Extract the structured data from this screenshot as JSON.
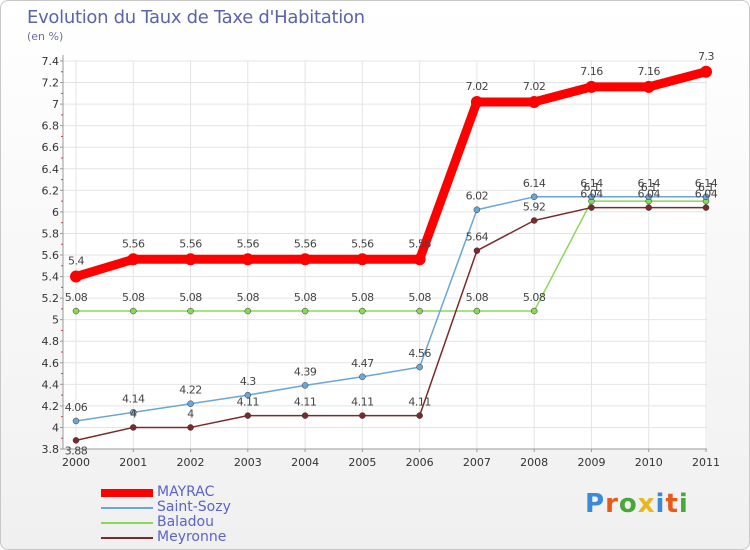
{
  "title": "Evolution du Taux de Taxe d'Habitation",
  "subtitle": "(en %)",
  "logo": {
    "letters": [
      "P",
      "r",
      "o",
      "x",
      "i",
      "t",
      "i"
    ],
    "colors": [
      "#3a8ad8",
      "#e85a1a",
      "#4aa83a",
      "#e8b81a",
      "#3a8ad8",
      "#e85a1a",
      "#4aa83a"
    ]
  },
  "chart_data": {
    "type": "line",
    "title": "Evolution du Taux de Taxe d'Habitation",
    "subtitle": "(en %)",
    "x": [
      "2000",
      "2001",
      "2002",
      "2003",
      "2004",
      "2005",
      "2006",
      "2007",
      "2008",
      "2009",
      "2010",
      "2011"
    ],
    "ylim": [
      3.8,
      7.4
    ],
    "yticks": [
      "3.8",
      "4",
      "4.2",
      "4.4",
      "4.6",
      "4.8",
      "5",
      "5.2",
      "5.4",
      "5.6",
      "5.8",
      "6",
      "6.2",
      "6.4",
      "6.6",
      "6.8",
      "7",
      "7.2",
      "7.4"
    ],
    "grid": true,
    "legend_position": "bottom-left",
    "series": [
      {
        "name": "MAYRAC",
        "color": "#ff0000",
        "values": [
          5.4,
          5.56,
          5.56,
          5.56,
          5.56,
          5.56,
          5.56,
          7.02,
          7.02,
          7.16,
          7.16,
          7.3
        ],
        "labels": [
          "5.4",
          "5.56",
          "5.56",
          "5.56",
          "5.56",
          "5.56",
          "5.56",
          "7.02",
          "7.02",
          "7.16",
          "7.16",
          "7.3"
        ]
      },
      {
        "name": "Saint-Sozy",
        "color": "#6aa6d8",
        "values": [
          4.06,
          4.14,
          4.22,
          4.3,
          4.39,
          4.47,
          4.56,
          6.02,
          6.14,
          6.14,
          6.14,
          6.14
        ],
        "labels": [
          "4.06",
          "4.14",
          "4.22",
          "4.3",
          "4.39",
          "4.47",
          "4.56",
          "6.02",
          "6.14",
          "6.14",
          "6.14",
          "6.14"
        ]
      },
      {
        "name": "Baladou",
        "color": "#8ad85a",
        "values": [
          5.08,
          5.08,
          5.08,
          5.08,
          5.08,
          5.08,
          5.08,
          5.08,
          5.08,
          6.1,
          6.1,
          6.1
        ],
        "labels": [
          "5.08",
          "5.08",
          "5.08",
          "5.08",
          "5.08",
          "5.08",
          "5.08",
          "5.08",
          "5.08",
          "6.1",
          "6.1",
          "6.1"
        ]
      },
      {
        "name": "Meyronne",
        "color": "#7a2a2a",
        "values": [
          3.88,
          4.0,
          4.0,
          4.11,
          4.11,
          4.11,
          4.11,
          5.64,
          5.92,
          6.04,
          6.04,
          6.04
        ],
        "labels": [
          "3.88",
          "4",
          "4",
          "4.11",
          "4.11",
          "4.11",
          "4.11",
          "5.64",
          "5.92",
          "6.04",
          "6.04",
          "6.04"
        ]
      }
    ]
  },
  "legend": [
    {
      "label": "MAYRAC",
      "color": "#ff0000"
    },
    {
      "label": "Saint-Sozy",
      "color": "#6aa6d8"
    },
    {
      "label": "Baladou",
      "color": "#8ad85a"
    },
    {
      "label": "Meyronne",
      "color": "#7a2a2a"
    }
  ]
}
